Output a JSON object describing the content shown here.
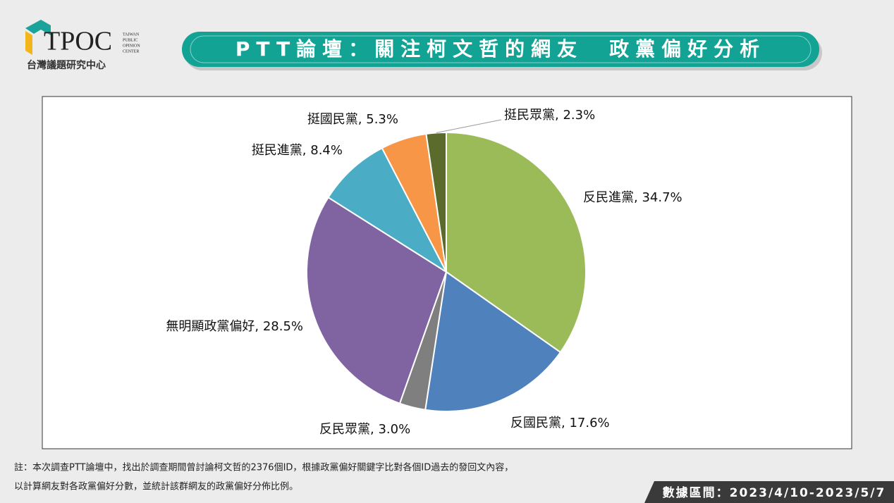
{
  "header": {
    "logo": "TPOC",
    "logo_small": [
      "TAIWAN",
      "PUBLIC",
      "OPINION",
      "CENTER"
    ],
    "org": "台灣議題研究中心",
    "title": "PTT論壇：關注柯文哲的網友　政黨偏好分析"
  },
  "chart_data": {
    "type": "pie",
    "values": [
      34.7,
      17.6,
      3.0,
      28.5,
      8.4,
      5.3,
      2.3
    ],
    "value_labels": [
      "反民進黨, 34.7%",
      "反國民黨, 17.6%",
      "反民眾黨, 3.0%",
      "無明顯政黨偏好, 28.5%",
      "挺民進黨, 8.4%",
      "挺國民黨, 5.3%",
      "挺民眾黨, 2.3%"
    ],
    "colors": [
      "#9bbb59",
      "#4f81bd",
      "#7f7f7f",
      "#8064a2",
      "#4bacc6",
      "#f79646",
      "#5a6b2c"
    ]
  },
  "footer": {
    "notes": [
      "註：本次調查PTT論壇中，找出於調查期間曾討論柯文哲的2376個ID，根據政黨偏好關鍵字比對各個ID過去的發回文內容，",
      "以計算網友對各政黨偏好分數，並統計該群網友的政黨偏好分佈比例。"
    ],
    "date_range": "數據區間：2023/4/10-2023/5/7"
  }
}
